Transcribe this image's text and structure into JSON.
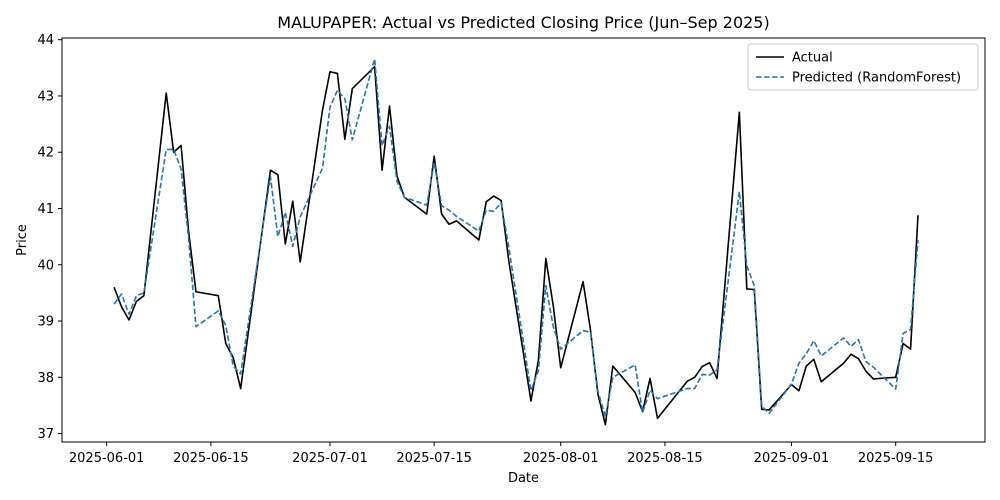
{
  "chart_data": {
    "type": "line",
    "title": "MALUPAPER: Actual vs Predicted Closing Price (Jun–Sep 2025)",
    "xlabel": "Date",
    "ylabel": "Price",
    "xlim": [
      "2025-05-26",
      "2025-09-27"
    ],
    "ylim": [
      36.85,
      44.03
    ],
    "x_ticks": [
      "2025-06-01",
      "2025-06-15",
      "2025-07-01",
      "2025-07-15",
      "2025-08-01",
      "2025-08-15",
      "2025-09-01",
      "2025-09-15"
    ],
    "y_ticks": [
      37,
      38,
      39,
      40,
      41,
      42,
      43,
      44
    ],
    "grid": false,
    "legend_position": "top-right",
    "x": [
      "2025-06-02",
      "2025-06-03",
      "2025-06-04",
      "2025-06-05",
      "2025-06-06",
      "2025-06-09",
      "2025-06-10",
      "2025-06-11",
      "2025-06-12",
      "2025-06-13",
      "2025-06-16",
      "2025-06-17",
      "2025-06-18",
      "2025-06-19",
      "2025-06-23",
      "2025-06-24",
      "2025-06-25",
      "2025-06-26",
      "2025-06-27",
      "2025-06-30",
      "2025-07-01",
      "2025-07-02",
      "2025-07-03",
      "2025-07-04",
      "2025-07-07",
      "2025-07-08",
      "2025-07-09",
      "2025-07-10",
      "2025-07-11",
      "2025-07-14",
      "2025-07-15",
      "2025-07-16",
      "2025-07-17",
      "2025-07-18",
      "2025-07-21",
      "2025-07-22",
      "2025-07-23",
      "2025-07-24",
      "2025-07-25",
      "2025-07-28",
      "2025-07-29",
      "2025-07-30",
      "2025-07-31",
      "2025-08-01",
      "2025-08-04",
      "2025-08-05",
      "2025-08-06",
      "2025-08-07",
      "2025-08-08",
      "2025-08-11",
      "2025-08-12",
      "2025-08-13",
      "2025-08-14",
      "2025-08-18",
      "2025-08-19",
      "2025-08-20",
      "2025-08-21",
      "2025-08-22",
      "2025-08-25",
      "2025-08-26",
      "2025-08-27",
      "2025-08-28",
      "2025-08-29",
      "2025-09-01",
      "2025-09-02",
      "2025-09-03",
      "2025-09-04",
      "2025-09-05",
      "2025-09-08",
      "2025-09-09",
      "2025-09-10",
      "2025-09-11",
      "2025-09-12",
      "2025-09-15",
      "2025-09-16",
      "2025-09-17",
      "2025-09-18"
    ],
    "series": [
      {
        "name": "Actual",
        "color": "#000000",
        "style": "solid",
        "values": [
          39.6,
          39.25,
          39.02,
          39.35,
          39.45,
          43.05,
          42.0,
          42.12,
          40.6,
          39.52,
          39.45,
          38.6,
          38.35,
          37.8,
          41.68,
          41.6,
          40.37,
          41.13,
          40.05,
          42.75,
          43.43,
          43.4,
          42.23,
          43.13,
          43.52,
          41.68,
          42.82,
          41.58,
          41.2,
          40.9,
          41.93,
          40.9,
          40.72,
          40.78,
          40.44,
          41.12,
          41.22,
          41.14,
          40.09,
          37.58,
          38.3,
          40.11,
          39.27,
          38.17,
          39.7,
          38.84,
          37.7,
          37.16,
          38.2,
          37.73,
          37.39,
          37.98,
          37.27,
          37.93,
          38.0,
          38.19,
          38.26,
          37.98,
          42.71,
          39.57,
          39.56,
          37.43,
          37.42,
          37.87,
          37.76,
          38.2,
          38.32,
          37.92,
          38.25,
          38.41,
          38.33,
          38.11,
          37.97,
          38.0,
          38.6,
          38.5,
          40.88
        ]
      },
      {
        "name": "Predicted (RandomForest)",
        "color": "#1f77b4",
        "style": "dashed",
        "values": [
          39.3,
          39.48,
          39.12,
          39.45,
          39.5,
          42.05,
          42.05,
          41.7,
          40.48,
          38.9,
          39.18,
          38.92,
          38.2,
          38.06,
          41.57,
          40.5,
          40.93,
          40.33,
          40.85,
          41.72,
          42.8,
          43.1,
          42.95,
          42.22,
          43.66,
          42.12,
          42.46,
          41.48,
          41.2,
          41.06,
          41.82,
          41.05,
          40.97,
          40.86,
          40.6,
          40.97,
          40.95,
          41.1,
          40.33,
          37.76,
          38.12,
          39.63,
          38.9,
          38.5,
          38.83,
          38.8,
          37.75,
          37.3,
          38.0,
          38.22,
          37.37,
          37.77,
          37.62,
          37.8,
          37.8,
          38.05,
          38.04,
          38.13,
          41.3,
          39.98,
          39.63,
          37.49,
          37.36,
          37.88,
          38.25,
          38.42,
          38.65,
          38.38,
          38.7,
          38.55,
          38.67,
          38.28,
          38.18,
          37.79,
          38.78,
          38.85,
          40.44
        ]
      }
    ]
  }
}
